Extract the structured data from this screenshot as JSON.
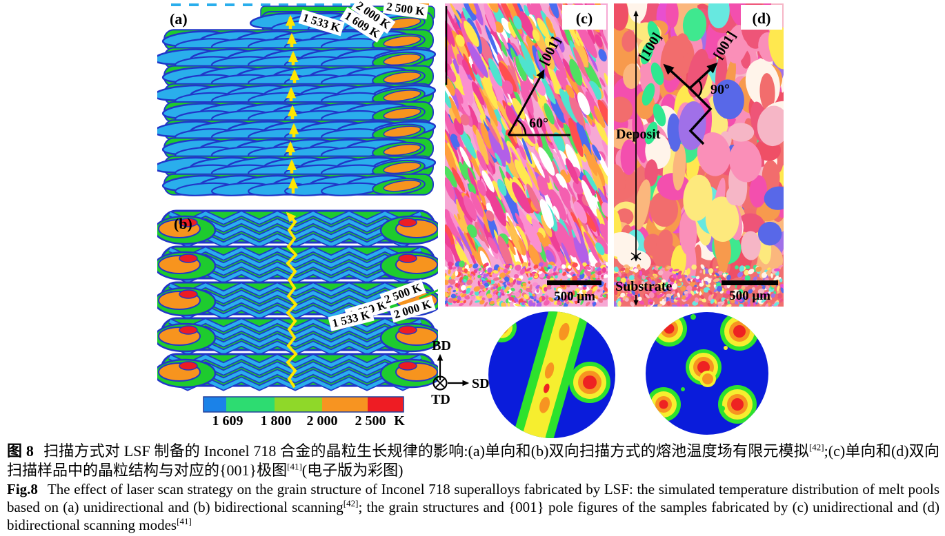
{
  "figure": {
    "panel_a": {
      "label": "(a)",
      "temp_labels": [
        "1 533 K",
        "1 609 K",
        "2 000 K",
        "2 500 K"
      ]
    },
    "panel_b": {
      "label": "(b)",
      "temp_labels": [
        "1 609 K",
        "2 500 K",
        "2 000 K",
        "1 533 K"
      ]
    },
    "panel_c": {
      "label": "(c)",
      "crystal_direction": "[001]",
      "angle": "60°",
      "scale_bar": "500 μm",
      "base_color": "#f6a8d4",
      "texture_palette": [
        "#f45fb0",
        "#fb8fd0",
        "#ee3f96",
        "#f26f8f",
        "#ff9f3d",
        "#ffe84f",
        "#ffffff",
        "#4fe3cf",
        "#4fe060",
        "#4a6cf0",
        "#b25fe8",
        "#ff4f4f",
        "#ffc04f"
      ]
    },
    "panel_d": {
      "label": "(d)",
      "crystal_direction_1": "[100]",
      "crystal_direction_2": "[001]",
      "angle": "90°",
      "region_top": "Deposit",
      "region_bottom": "Substrate",
      "scale_bar": "500 μm",
      "base_color": "#f07070",
      "texture_palette": [
        "#f26d6d",
        "#ee5578",
        "#fa8fb8",
        "#f34fae",
        "#f79a4d",
        "#fbb77d",
        "#fde97d",
        "#fff4ea",
        "#f6b6c6",
        "#ef4f66",
        "#e84fd0"
      ],
      "accent_palette": [
        "#3fe88f",
        "#67e8e0",
        "#5868e8",
        "#a070e8",
        "#ffe84f"
      ]
    },
    "colorbar": {
      "tick_labels": [
        "1 609",
        "1 800",
        "2 000",
        "2 500"
      ],
      "unit": "K",
      "segment_colors": [
        "#1b82e8",
        "#2ddc71",
        "#8fd829",
        "#f79421",
        "#ee1c23"
      ]
    },
    "axes": {
      "up": "BD",
      "right": "SD",
      "into_page": "TD"
    },
    "melt_pool_colors": {
      "green": "#1ecb2e",
      "light_blue": "#2aaeec",
      "dark_blue": "#2136c8",
      "orange": "#f7941e",
      "red": "#ec1c24",
      "arrow_yellow": "#ffe600"
    },
    "pole_figure_colors": {
      "background": "#0a1cdb",
      "low": "#2de22d",
      "mid": "#f6ee2f",
      "high": "#f79421",
      "max": "#ee2222"
    }
  },
  "caption": {
    "zh": {
      "fig_label": "图 8",
      "part1": "扫描方式对 LSF 制备的 Inconel 718 合金的晶粒生长规律的影响:(a)单向和(b)双向扫描方式的熔池温度场有限元模拟",
      "ref1": "[42]",
      "part2": ";(c)单向和(d)双向扫描样品中的晶粒结构与对应的{001}极图",
      "ref2": "[41]",
      "part3": "(电子版为彩图)"
    },
    "en": {
      "fig_label": "Fig.8",
      "part1": "The effect of laser scan strategy on the grain structure of Inconel 718 superalloys fabricated by LSF: the simulated temperature distribution of melt pools based on (a) unidirectional and (b) bidirectional scanning",
      "ref1": "[42]",
      "part2": "; the grain structures and {001} pole figures of the samples fabricated by (c) unidirectional and (d) bidirectional scanning modes",
      "ref2": "[41]"
    }
  }
}
